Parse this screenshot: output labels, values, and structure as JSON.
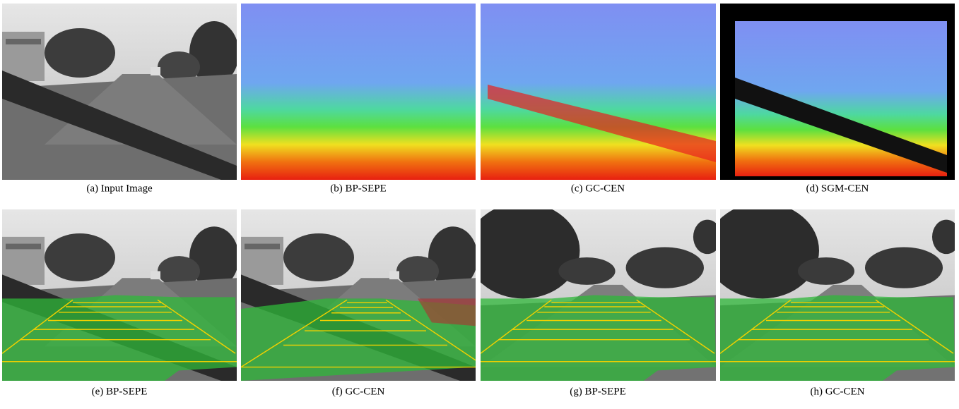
{
  "figure": {
    "panels": [
      {
        "caption": "(a) Input Image"
      },
      {
        "caption": "(b) BP-SEPE"
      },
      {
        "caption": "(c) GC-CEN"
      },
      {
        "caption": "(d) SGM-CEN"
      },
      {
        "caption": "(e) BP-SEPE"
      },
      {
        "caption": "(f) GC-CEN"
      },
      {
        "caption": "(g) BP-SEPE"
      },
      {
        "caption": "(h) GC-CEN"
      }
    ]
  }
}
